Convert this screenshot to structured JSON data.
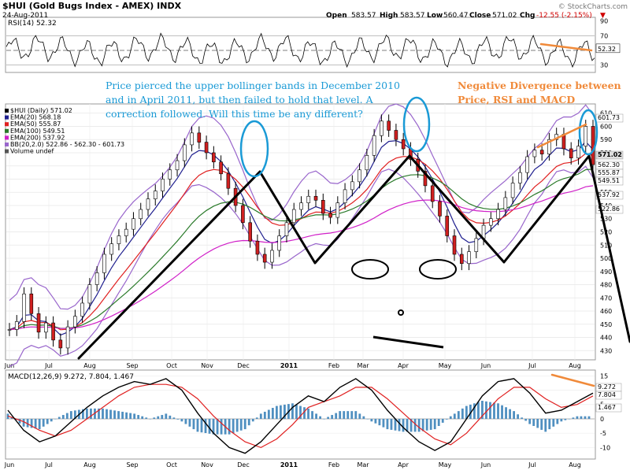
{
  "header": {
    "symbol_title": "$HUI (Gold Bugs Index - AMEX)  INDX",
    "date": "24-Aug-2011",
    "open_label": "Open",
    "open": "583.57",
    "high_label": "High",
    "high": "583.57",
    "low_label": "Low",
    "low": "560.47",
    "close_label": "Close",
    "close": "571.02",
    "chg_label": "Chg",
    "chg": "-12.55 (-2.15%)",
    "chg_arrow": "▼",
    "watermark": "© StockCharts.com"
  },
  "colors": {
    "price": "#000000",
    "ema20": "#1f1f8f",
    "ema50": "#e02020",
    "ema100": "#2a7a2a",
    "ema200": "#d020c8",
    "bb": "#9966cc",
    "annotation_blue": "#1a9ad6",
    "annotation_orange": "#f08a3a",
    "macd_hist": "#4f8fc0",
    "signal": "#e02020"
  },
  "chart_data": [
    {
      "type": "line",
      "name": "rsi-panel",
      "legend": "RSI(14) 52.32",
      "yticks": [
        "90",
        "70",
        "50",
        "30"
      ],
      "ylim": [
        20,
        95
      ],
      "reference_lines": [
        70,
        50,
        30
      ],
      "last_value": "52.32",
      "divergence_note": "RSI making lower highs (orange line)"
    },
    {
      "type": "line",
      "name": "price-panel",
      "legend": [
        {
          "label": "$HUI (Daily) 571.02",
          "color": "#000000"
        },
        {
          "label": "EMA(20) 568.18",
          "color": "#1f1f8f"
        },
        {
          "label": "EMA(50) 555.87",
          "color": "#e02020"
        },
        {
          "label": "EMA(100) 549.51",
          "color": "#2a7a2a"
        },
        {
          "label": "EMA(200) 537.92",
          "color": "#d020c8"
        },
        {
          "label": "BB(20,2.0) 522.86 - 562.30 - 601.73",
          "color": "#9966cc"
        },
        {
          "label": "Volume undef",
          "color": "#555555"
        }
      ],
      "yticks": [
        "610",
        "600",
        "590",
        "580",
        "570",
        "560",
        "550",
        "540",
        "530",
        "520",
        "510",
        "500",
        "490",
        "480",
        "470",
        "460",
        "450",
        "440",
        "430"
      ],
      "ylim": [
        423,
        617
      ],
      "price_labels": [
        "601.73",
        "571.02",
        "562.30",
        "555.87",
        "549.51",
        "537.92",
        "522.86"
      ],
      "x_labels": [
        "Jun",
        "Jul",
        "Aug",
        "Sep",
        "Oct",
        "Nov",
        "Dec",
        "2011",
        "Feb",
        "Mar",
        "Apr",
        "May",
        "Jun",
        "Jul",
        "Aug"
      ],
      "close_series_approx": [
        446,
        452,
        473,
        458,
        444,
        451,
        438,
        432,
        448,
        456,
        466,
        480,
        489,
        503,
        511,
        517,
        522,
        530,
        537,
        545,
        551,
        560,
        567,
        574,
        586,
        595,
        588,
        580,
        573,
        564,
        553,
        540,
        527,
        513,
        503,
        497,
        506,
        517,
        527,
        537,
        542,
        547,
        544,
        534,
        531,
        542,
        552,
        558,
        567,
        578,
        593,
        604,
        597,
        590,
        583,
        575,
        566,
        555,
        543,
        532,
        517,
        503,
        496,
        505,
        515,
        525,
        530,
        537,
        546,
        557,
        565,
        577,
        582,
        579,
        590,
        594,
        583,
        576,
        585,
        600,
        571
      ],
      "annotation": "Price pierced the upper bollinger bands in December 2010 and in April 2011, but then failed to hold that level. A correction followed. Will this time be any different?",
      "divergence_title": "Negative Divergence between Price, RSI and MACD"
    },
    {
      "type": "line",
      "name": "macd-panel",
      "legend": "MACD(12,26,9) 9.272, 7.804, 1.467",
      "yticks": [
        "15",
        "10",
        "5",
        "0",
        "-5",
        "-10"
      ],
      "ylim": [
        -14,
        17
      ],
      "x_labels": [
        "Jun",
        "Jul",
        "Aug",
        "Sep",
        "Oct",
        "Nov",
        "Dec",
        "2011",
        "Feb",
        "Mar",
        "Apr",
        "May",
        "Jun",
        "Jul",
        "Aug"
      ],
      "macd_values": [
        "9.272",
        "7.804",
        "1.467"
      ],
      "macd_series_approx": [
        3,
        -4,
        -8,
        -6,
        -1,
        4,
        8,
        11,
        13,
        12,
        14,
        10,
        2,
        -5,
        -10,
        -12,
        -8,
        -2,
        4,
        8,
        6,
        11,
        14,
        10,
        3,
        -3,
        -8,
        -11,
        -8,
        0,
        8,
        13,
        14,
        9,
        2,
        3,
        6,
        9
      ],
      "signal_series_approx": [
        1,
        -1,
        -4,
        -6,
        -4,
        0,
        4,
        8,
        11,
        12,
        12,
        11,
        7,
        1,
        -4,
        -8,
        -10,
        -7,
        -2,
        4,
        6,
        8,
        11,
        11,
        7,
        2,
        -3,
        -7,
        -9,
        -5,
        1,
        7,
        11,
        11,
        7,
        4,
        5,
        8
      ]
    }
  ]
}
